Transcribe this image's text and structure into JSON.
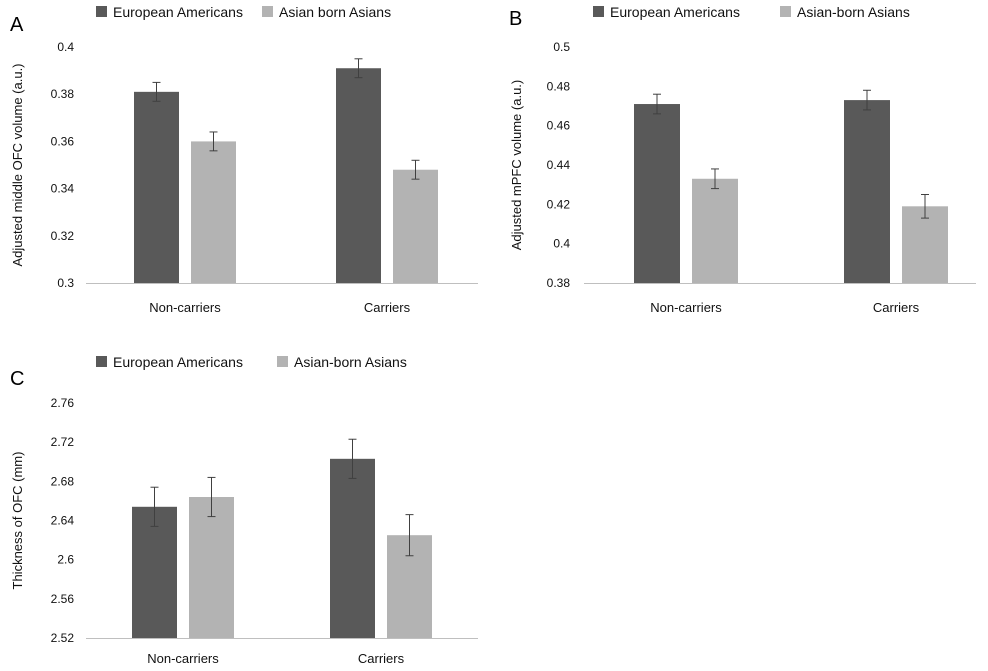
{
  "colors": {
    "european_americans": "#595959",
    "asian_born_asians": "#b3b3b3",
    "axis": "#bfbfbf",
    "error_bar": "#404040"
  },
  "chart_data": [
    {
      "panel": "A",
      "type": "bar",
      "ylabel": "Adjusted middle OFC volume (a.u.)",
      "ylim": [
        0.3,
        0.4
      ],
      "yticks": [
        "0.3",
        "0.32",
        "0.34",
        "0.36",
        "0.38",
        "0.4"
      ],
      "categories": [
        "Non-carriers",
        "Carriers"
      ],
      "grid": false,
      "legend_position": "top",
      "series": [
        {
          "name": "European Americans",
          "color": "#595959",
          "values": [
            0.381,
            0.391
          ],
          "errors": [
            0.004,
            0.004
          ]
        },
        {
          "name": "Asian born Asians",
          "color": "#b3b3b3",
          "values": [
            0.36,
            0.348
          ],
          "errors": [
            0.004,
            0.004
          ]
        }
      ]
    },
    {
      "panel": "B",
      "type": "bar",
      "ylabel": "Adjusted mPFC volume (a.u.)",
      "ylim": [
        0.38,
        0.5
      ],
      "yticks": [
        "0.38",
        "0.4",
        "0.42",
        "0.44",
        "0.46",
        "0.48",
        "0.5"
      ],
      "categories": [
        "Non-carriers",
        "Carriers"
      ],
      "grid": false,
      "legend_position": "top",
      "series": [
        {
          "name": "European Americans",
          "color": "#595959",
          "values": [
            0.471,
            0.473
          ],
          "errors": [
            0.005,
            0.005
          ]
        },
        {
          "name": "Asian-born Asians",
          "color": "#b3b3b3",
          "values": [
            0.433,
            0.419
          ],
          "errors": [
            0.005,
            0.006
          ]
        }
      ]
    },
    {
      "panel": "C",
      "type": "bar",
      "ylabel": "Thickness of OFC (mm)",
      "ylim": [
        2.52,
        2.76
      ],
      "yticks": [
        "2.52",
        "2.56",
        "2.6",
        "2.64",
        "2.68",
        "2.72",
        "2.76"
      ],
      "categories": [
        "Non-carriers",
        "Carriers"
      ],
      "grid": false,
      "legend_position": "top",
      "series": [
        {
          "name": "European Americans",
          "color": "#595959",
          "values": [
            2.654,
            2.703
          ],
          "errors": [
            0.02,
            0.02
          ]
        },
        {
          "name": "Asian-born Asians",
          "color": "#b3b3b3",
          "values": [
            2.664,
            2.625
          ],
          "errors": [
            0.02,
            0.021
          ]
        }
      ]
    }
  ]
}
